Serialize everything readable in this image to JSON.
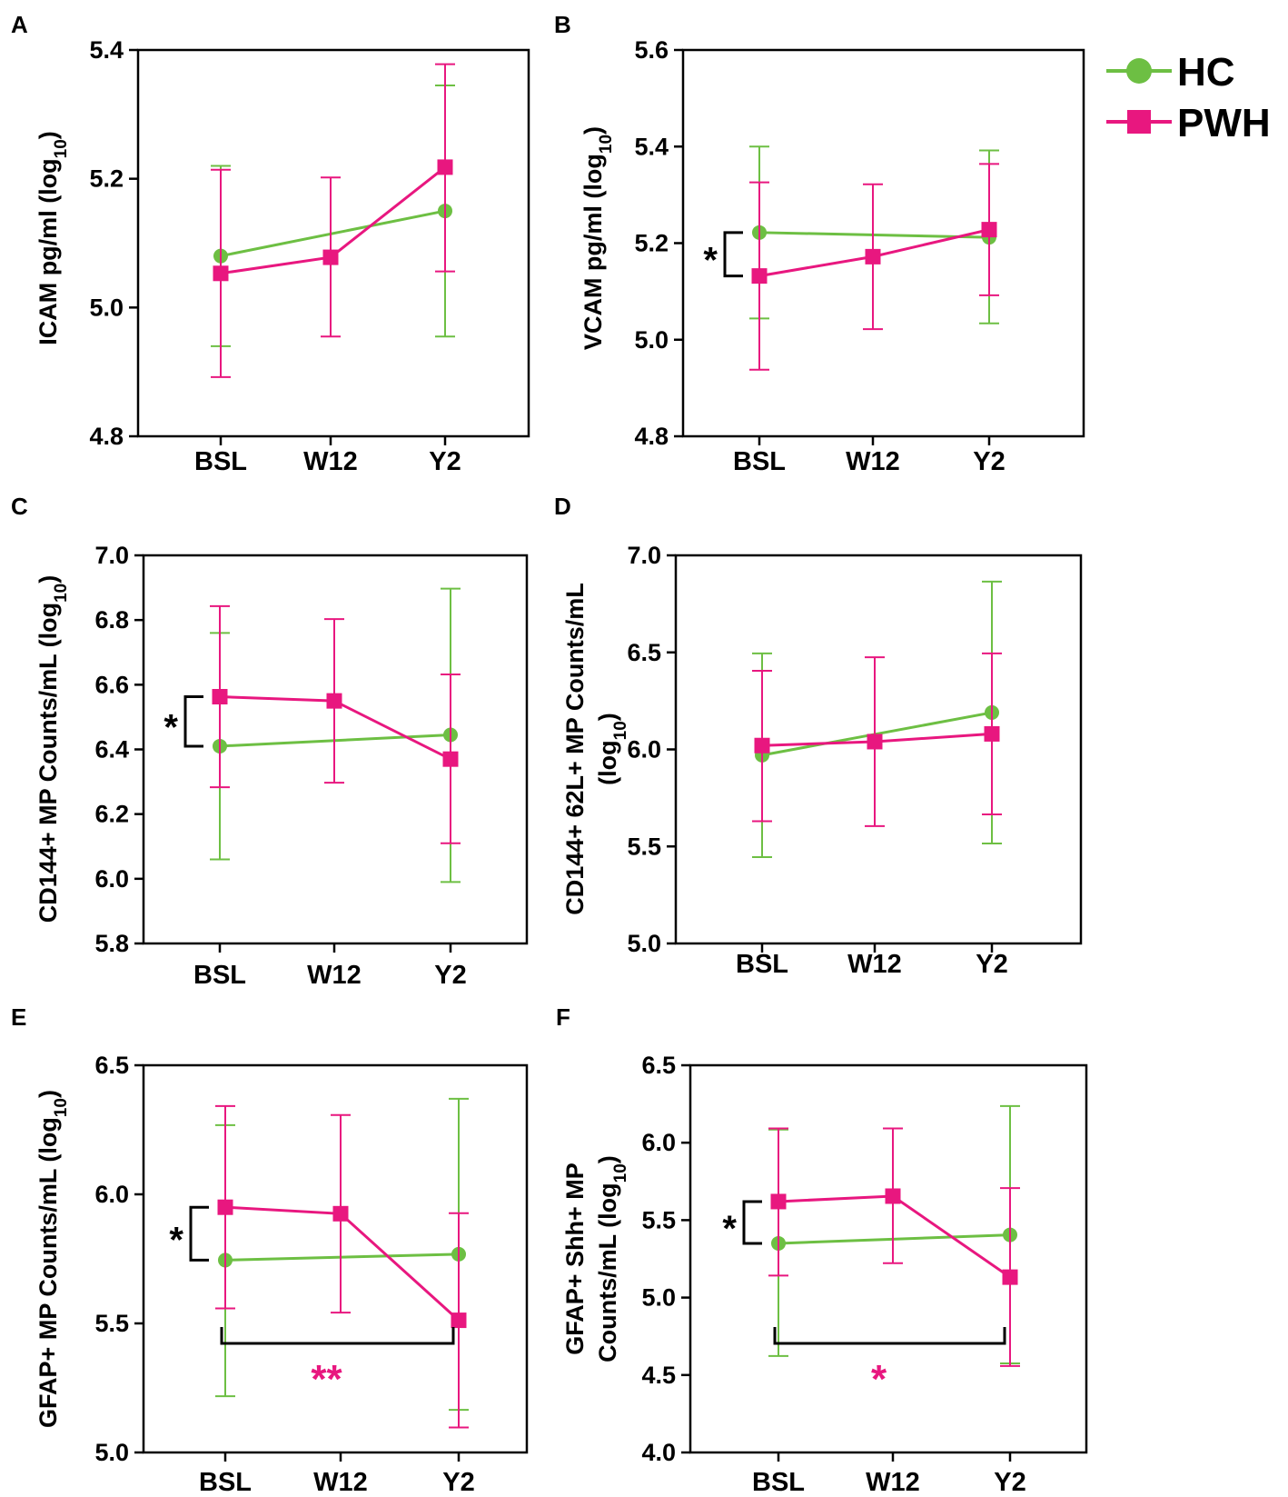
{
  "legend": [
    {
      "name": "HC",
      "color": "#6dbf43",
      "marker": "circle"
    },
    {
      "name": "PWH",
      "color": "#e8177f",
      "marker": "square"
    }
  ],
  "chart_data": [
    {
      "type": "line",
      "panel": "A",
      "categories": [
        "BSL",
        "W12",
        "Y2"
      ],
      "ylabel": [
        "ICAM pg/ml (log",
        "10",
        ")"
      ],
      "ylim": [
        4.8,
        5.4
      ],
      "yticks": [
        "4.8",
        "5.0",
        "5.2",
        "5.4"
      ],
      "series": [
        {
          "name": "HC",
          "values": [
            5.08,
            null,
            5.15
          ],
          "lower": [
            4.94,
            null,
            4.955
          ],
          "upper": [
            5.22,
            null,
            5.345
          ]
        },
        {
          "name": "PWH",
          "values": [
            5.053,
            5.078,
            5.218
          ],
          "lower": [
            4.892,
            4.955,
            5.056
          ],
          "upper": [
            5.214,
            5.202,
            5.378
          ]
        }
      ],
      "pair_sig": null,
      "span_sig": null
    },
    {
      "type": "line",
      "panel": "B",
      "categories": [
        "BSL",
        "W12",
        "Y2"
      ],
      "ylabel": [
        "VCAM pg/ml (log",
        "10",
        ")"
      ],
      "ylim": [
        4.8,
        5.6
      ],
      "yticks": [
        "4.8",
        "5.0",
        "5.2",
        "5.4",
        "5.6"
      ],
      "series": [
        {
          "name": "HC",
          "values": [
            5.222,
            null,
            5.212
          ],
          "lower": [
            5.044,
            null,
            5.034
          ],
          "upper": [
            5.4,
            null,
            5.392
          ]
        },
        {
          "name": "PWH",
          "values": [
            5.132,
            5.172,
            5.228
          ],
          "lower": [
            4.938,
            5.022,
            5.092
          ],
          "upper": [
            5.326,
            5.322,
            5.364
          ]
        }
      ],
      "pair_sig": "*",
      "span_sig": null
    },
    {
      "type": "line",
      "panel": "C",
      "categories": [
        "BSL",
        "W12",
        "Y2"
      ],
      "ylabel": [
        "CD144+ MP Counts/mL (log",
        "10",
        ")"
      ],
      "ylim": [
        5.8,
        7.0
      ],
      "yticks": [
        "5.8",
        "6.0",
        "6.2",
        "6.4",
        "6.6",
        "6.8",
        "7.0"
      ],
      "series": [
        {
          "name": "HC",
          "values": [
            6.41,
            null,
            6.445
          ],
          "lower": [
            6.06,
            null,
            5.99
          ],
          "upper": [
            6.76,
            null,
            6.897
          ]
        },
        {
          "name": "PWH",
          "values": [
            6.563,
            6.55,
            6.37
          ],
          "lower": [
            6.283,
            6.297,
            6.11
          ],
          "upper": [
            6.843,
            6.803,
            6.632
          ]
        }
      ],
      "pair_sig": "*",
      "span_sig": null
    },
    {
      "type": "line",
      "panel": "D",
      "categories": [
        "BSL",
        "W12",
        "Y2"
      ],
      "ylabel": [
        "CD144+ 62L+ MP Counts/mL",
        "(log",
        "10",
        ")"
      ],
      "ylim": [
        5.0,
        7.0
      ],
      "yticks": [
        "5.0",
        "5.5",
        "6.0",
        "6.5",
        "7.0"
      ],
      "series": [
        {
          "name": "HC",
          "values": [
            5.97,
            null,
            6.19
          ],
          "lower": [
            5.445,
            null,
            5.515
          ],
          "upper": [
            6.495,
            null,
            6.865
          ]
        },
        {
          "name": "PWH",
          "values": [
            6.02,
            6.04,
            6.08
          ],
          "lower": [
            5.63,
            5.605,
            5.665
          ],
          "upper": [
            6.405,
            6.475,
            6.495
          ]
        }
      ],
      "pair_sig": null,
      "span_sig": null
    },
    {
      "type": "line",
      "panel": "E",
      "categories": [
        "BSL",
        "W12",
        "Y2"
      ],
      "ylabel": [
        "GFAP+ MP Counts/mL (log",
        "10",
        ")"
      ],
      "ylim": [
        5.0,
        6.5
      ],
      "yticks": [
        "5.0",
        "5.5",
        "6.0",
        "6.5"
      ],
      "series": [
        {
          "name": "HC",
          "values": [
            5.745,
            null,
            5.768
          ],
          "lower": [
            5.218,
            null,
            5.165
          ],
          "upper": [
            6.268,
            null,
            6.37
          ]
        },
        {
          "name": "PWH",
          "values": [
            5.95,
            5.925,
            5.512
          ],
          "lower": [
            5.558,
            5.542,
            5.097
          ],
          "upper": [
            6.342,
            6.307,
            5.927
          ]
        }
      ],
      "pair_sig": "*",
      "span_sig": "**"
    },
    {
      "type": "line",
      "panel": "F",
      "categories": [
        "BSL",
        "W12",
        "Y2"
      ],
      "ylabel": [
        "GFAP+ Shh+ MP",
        "Counts/mL (log",
        "10",
        ")"
      ],
      "ylim": [
        4.0,
        6.5
      ],
      "yticks": [
        "4.0",
        "4.5",
        "5.0",
        "5.5",
        "6.0",
        "6.5"
      ],
      "series": [
        {
          "name": "HC",
          "values": [
            5.35,
            null,
            5.405
          ],
          "lower": [
            4.623,
            null,
            4.575
          ],
          "upper": [
            6.085,
            null,
            6.237
          ]
        },
        {
          "name": "PWH",
          "values": [
            5.62,
            5.655,
            5.132
          ],
          "lower": [
            5.142,
            5.222,
            4.558
          ],
          "upper": [
            6.092,
            6.092,
            5.707
          ]
        }
      ],
      "pair_sig": "*",
      "span_sig": "*"
    }
  ]
}
